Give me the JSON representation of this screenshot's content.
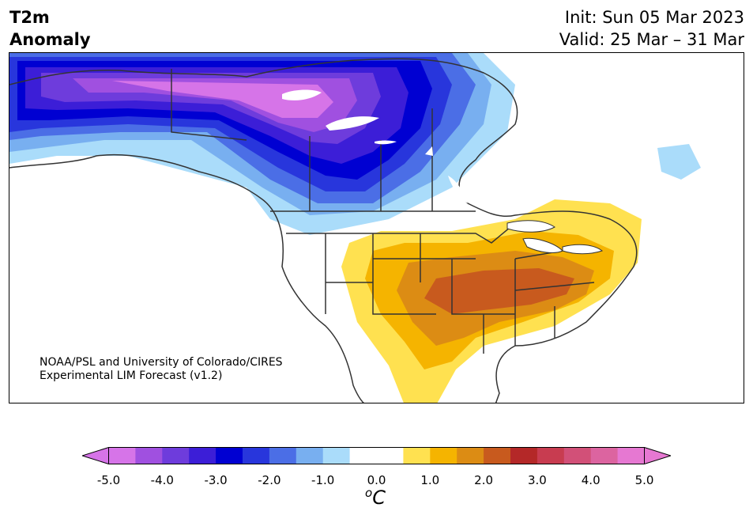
{
  "header": {
    "variable_line1": "T2m",
    "variable_line2": "Anomaly",
    "init_text": "Init: Sun 05 Mar 2023",
    "valid_text": "Valid: 25 Mar – 31 Mar"
  },
  "map": {
    "region": "North America",
    "credit_line1": "NOAA/PSL and University of Colorado/CIRES",
    "credit_line2": "Experimental LIM Forecast (v1.2)",
    "anomalies": [
      {
        "area": "Alaska / Yukon / Northwest Territories",
        "value_c": -5.0
      },
      {
        "area": "Prairies / central Canada",
        "value_c": -3.0
      },
      {
        "area": "Quebec / Great Lakes north",
        "value_c": -1.0
      },
      {
        "area": "Southern Plains / Oklahoma / Arkansas",
        "value_c": 2.5
      },
      {
        "area": "Ohio Valley / Southeast",
        "value_c": 2.0
      },
      {
        "area": "Texas / Gulf Coast",
        "value_c": 1.5
      },
      {
        "area": "Northeast US",
        "value_c": 1.0
      }
    ]
  },
  "colorbar": {
    "unit_base": "C",
    "unit_sup": "o",
    "colors": [
      "#d674e8",
      "#a050e0",
      "#6e3cdc",
      "#3c1ed7",
      "#0000d2",
      "#2836dc",
      "#4b6ee6",
      "#78aff0",
      "#aadcfa",
      "#ffffff",
      "#ffffff",
      "#ffe150",
      "#f5b400",
      "#dc8c14",
      "#c85a1e",
      "#b42828",
      "#c83c50",
      "#d25078",
      "#dc64a0",
      "#e678d2"
    ],
    "extend_low_color": "#d674e8",
    "extend_high_color": "#e678d2",
    "tick_labels": [
      "-5.0",
      "-4.0",
      "-3.0",
      "-2.0",
      "-1.0",
      "0.0",
      "1.0",
      "2.0",
      "3.0",
      "4.0",
      "5.0"
    ]
  }
}
